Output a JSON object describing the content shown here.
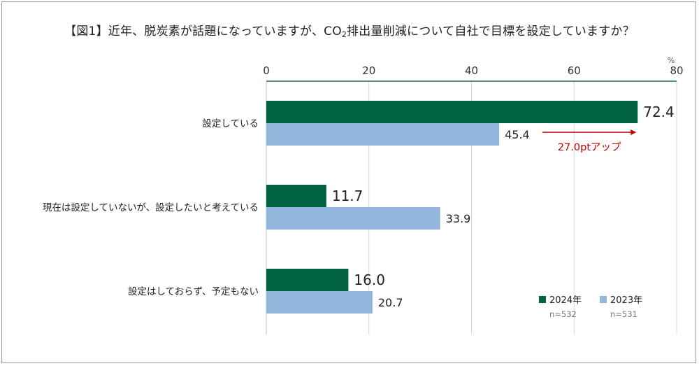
{
  "title": {
    "prefix": "【図1】近年、脱炭素が話題になっていますが、CO",
    "subscript": "2",
    "suffix": "排出量削減について自社で目標を設定していますか？"
  },
  "chart_data": {
    "type": "bar",
    "orientation": "horizontal",
    "unit": "%",
    "xlim": [
      0,
      80
    ],
    "ticks": [
      0,
      20,
      40,
      60,
      80
    ],
    "grid": true,
    "categories": [
      "設定している",
      "現在は設定していないが、設定したいと考えている",
      "設定はしておらず、予定もない"
    ],
    "series": [
      {
        "name": "2024年",
        "n": "n=532",
        "color": "#006241",
        "values": [
          72.4,
          11.7,
          16.0
        ]
      },
      {
        "name": "2023年",
        "n": "n=531",
        "color": "#92b5dc",
        "values": [
          45.4,
          33.9,
          20.7
        ]
      }
    ],
    "value_labels": [
      [
        "72.4",
        "11.7",
        "16.0"
      ],
      [
        "45.4",
        "33.9",
        "20.7"
      ]
    ],
    "annotation": {
      "text": "27.0ptアップ",
      "color": "#c00000",
      "from": 45.4,
      "to": 72.4,
      "category_index": 0
    },
    "legend_position": "bottom-right",
    "axis_color": "#1b6b4a"
  }
}
